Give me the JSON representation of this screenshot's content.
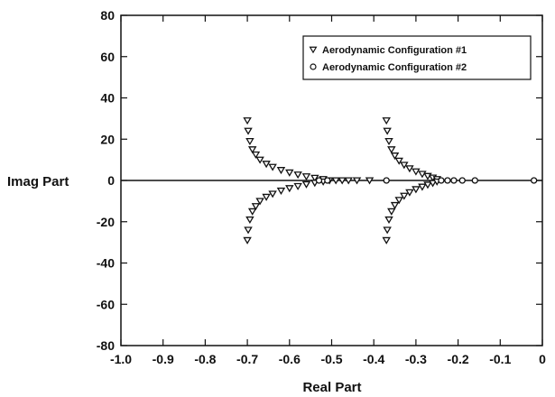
{
  "chart_data": {
    "type": "scatter",
    "title": "",
    "xlabel": "Real Part",
    "ylabel": "Imag Part",
    "xlim": [
      -1.0,
      0
    ],
    "ylim": [
      -80,
      80
    ],
    "xticks": [
      -1.0,
      -0.9,
      -0.8,
      -0.7,
      -0.6,
      -0.5,
      -0.4,
      -0.3,
      -0.2,
      -0.1,
      0
    ],
    "xtick_labels": [
      "-1.0",
      "-0.9",
      "-0.8",
      "-0.7",
      "-0.6",
      "-0.5",
      "-0.4",
      "-0.3",
      "-0.2",
      "-0.1",
      "0"
    ],
    "yticks": [
      80,
      60,
      40,
      20,
      0,
      -20,
      -40,
      -60,
      -80
    ],
    "ytick_labels": [
      "80",
      "60",
      "40",
      "20",
      "0",
      "-20",
      "-40",
      "-60",
      "-80"
    ],
    "grid": false,
    "legend_position": "top-right",
    "reference_line": {
      "y": 0
    },
    "colors": {
      "markers": "#111111",
      "axes": "#111111",
      "background": "#ffffff"
    },
    "series": [
      {
        "name": "Aerodynamic Configuration #1",
        "marker": "triangle-down",
        "points": [
          [
            -0.7,
            29
          ],
          [
            -0.698,
            24
          ],
          [
            -0.694,
            19
          ],
          [
            -0.688,
            15
          ],
          [
            -0.68,
            12.5
          ],
          [
            -0.67,
            10
          ],
          [
            -0.655,
            8
          ],
          [
            -0.64,
            6.5
          ],
          [
            -0.62,
            5
          ],
          [
            -0.6,
            3.8
          ],
          [
            -0.58,
            2.8
          ],
          [
            -0.56,
            1.9
          ],
          [
            -0.54,
            1.2
          ],
          [
            -0.52,
            0.6
          ],
          [
            -0.7,
            -29
          ],
          [
            -0.698,
            -24
          ],
          [
            -0.694,
            -19
          ],
          [
            -0.688,
            -15
          ],
          [
            -0.68,
            -12.5
          ],
          [
            -0.67,
            -10
          ],
          [
            -0.655,
            -8
          ],
          [
            -0.64,
            -6.5
          ],
          [
            -0.62,
            -5
          ],
          [
            -0.6,
            -3.8
          ],
          [
            -0.58,
            -2.8
          ],
          [
            -0.56,
            -1.9
          ],
          [
            -0.54,
            -1.2
          ],
          [
            -0.52,
            -0.6
          ],
          [
            -0.505,
            0
          ],
          [
            -0.49,
            0
          ],
          [
            -0.475,
            0
          ],
          [
            -0.46,
            0
          ],
          [
            -0.44,
            0
          ],
          [
            -0.41,
            0
          ],
          [
            -0.37,
            29
          ],
          [
            -0.368,
            24
          ],
          [
            -0.364,
            19
          ],
          [
            -0.358,
            15
          ],
          [
            -0.35,
            12
          ],
          [
            -0.34,
            9.5
          ],
          [
            -0.328,
            7.5
          ],
          [
            -0.315,
            5.8
          ],
          [
            -0.3,
            4.3
          ],
          [
            -0.285,
            3.1
          ],
          [
            -0.272,
            2.1
          ],
          [
            -0.26,
            1.3
          ],
          [
            -0.25,
            0.6
          ],
          [
            -0.37,
            -29
          ],
          [
            -0.368,
            -24
          ],
          [
            -0.364,
            -19
          ],
          [
            -0.358,
            -15
          ],
          [
            -0.35,
            -12
          ],
          [
            -0.34,
            -9.5
          ],
          [
            -0.328,
            -7.5
          ],
          [
            -0.315,
            -5.8
          ],
          [
            -0.3,
            -4.3
          ],
          [
            -0.285,
            -3.1
          ],
          [
            -0.272,
            -2.1
          ],
          [
            -0.26,
            -1.3
          ],
          [
            -0.25,
            -0.6
          ]
        ]
      },
      {
        "name": "Aerodynamic Configuration #2",
        "marker": "circle",
        "points": [
          [
            -0.53,
            0
          ],
          [
            -0.51,
            0
          ],
          [
            -0.37,
            0
          ],
          [
            -0.24,
            0
          ],
          [
            -0.225,
            0
          ],
          [
            -0.21,
            0
          ],
          [
            -0.19,
            0
          ],
          [
            -0.16,
            0
          ],
          [
            -0.02,
            0
          ]
        ]
      }
    ]
  }
}
